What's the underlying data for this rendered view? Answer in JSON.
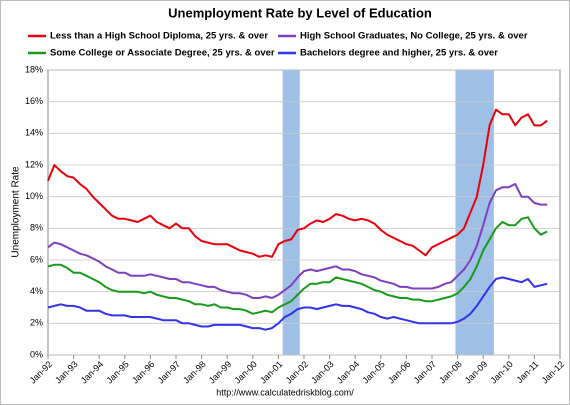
{
  "chart_data": {
    "type": "line",
    "title": "Unemployment Rate by Level of Education",
    "y_label": "Unemployment Rate",
    "footer": "http://www.calculatedriskblog.com/",
    "legend": "top",
    "grid": true,
    "ylim": [
      0,
      18
    ],
    "yticks": [
      {
        "value": 0,
        "label": "0%"
      },
      {
        "value": 2,
        "label": "2%"
      },
      {
        "value": 4,
        "label": "4%"
      },
      {
        "value": 6,
        "label": "6%"
      },
      {
        "value": 8,
        "label": "8%"
      },
      {
        "value": 10,
        "label": "10%"
      },
      {
        "value": 12,
        "label": "12%"
      },
      {
        "value": 14,
        "label": "14%"
      },
      {
        "value": 16,
        "label": "16%"
      },
      {
        "value": 18,
        "label": "18%"
      }
    ],
    "xlim": [
      "1992-01",
      "2012-01"
    ],
    "xticks": [
      {
        "value": "1992-01",
        "label": "Jan-92"
      },
      {
        "value": "1993-01",
        "label": "Jan-93"
      },
      {
        "value": "1994-01",
        "label": "Jan-94"
      },
      {
        "value": "1995-01",
        "label": "Jan-95"
      },
      {
        "value": "1996-01",
        "label": "Jan-96"
      },
      {
        "value": "1997-01",
        "label": "Jan-97"
      },
      {
        "value": "1998-01",
        "label": "Jan-98"
      },
      {
        "value": "1999-01",
        "label": "Jan-99"
      },
      {
        "value": "2000-01",
        "label": "Jan-00"
      },
      {
        "value": "2001-01",
        "label": "Jan-01"
      },
      {
        "value": "2002-01",
        "label": "Jan-02"
      },
      {
        "value": "2003-01",
        "label": "Jan-03"
      },
      {
        "value": "2004-01",
        "label": "Jan-04"
      },
      {
        "value": "2005-01",
        "label": "Jan-05"
      },
      {
        "value": "2006-01",
        "label": "Jan-06"
      },
      {
        "value": "2007-01",
        "label": "Jan-07"
      },
      {
        "value": "2008-01",
        "label": "Jan-08"
      },
      {
        "value": "2009-01",
        "label": "Jan-09"
      },
      {
        "value": "2010-01",
        "label": "Jan-10"
      },
      {
        "value": "2011-01",
        "label": "Jan-11"
      },
      {
        "value": "2012-01",
        "label": "Jan-12"
      }
    ],
    "recessions": [
      [
        "2001-03",
        "2001-11"
      ],
      [
        "2007-12",
        "2009-06"
      ]
    ],
    "recession_color": "#8db4e2",
    "x": [
      "1992-01",
      "1992-04",
      "1992-07",
      "1992-10",
      "1993-01",
      "1993-04",
      "1993-07",
      "1993-10",
      "1994-01",
      "1994-04",
      "1994-07",
      "1994-10",
      "1995-01",
      "1995-04",
      "1995-07",
      "1995-10",
      "1996-01",
      "1996-04",
      "1996-07",
      "1996-10",
      "1997-01",
      "1997-04",
      "1997-07",
      "1997-10",
      "1998-01",
      "1998-04",
      "1998-07",
      "1998-10",
      "1999-01",
      "1999-04",
      "1999-07",
      "1999-10",
      "2000-01",
      "2000-04",
      "2000-07",
      "2000-10",
      "2001-01",
      "2001-04",
      "2001-07",
      "2001-10",
      "2002-01",
      "2002-04",
      "2002-07",
      "2002-10",
      "2003-01",
      "2003-04",
      "2003-07",
      "2003-10",
      "2004-01",
      "2004-04",
      "2004-07",
      "2004-10",
      "2005-01",
      "2005-04",
      "2005-07",
      "2005-10",
      "2006-01",
      "2006-04",
      "2006-07",
      "2006-10",
      "2007-01",
      "2007-04",
      "2007-07",
      "2007-10",
      "2008-01",
      "2008-04",
      "2008-07",
      "2008-10",
      "2009-01",
      "2009-04",
      "2009-07",
      "2009-10",
      "2010-01",
      "2010-04",
      "2010-07",
      "2010-10",
      "2011-01",
      "2011-04",
      "2011-07"
    ],
    "series": [
      {
        "name": "Less than a High School Diploma, 25 yrs. & over",
        "color": "#e8000b",
        "values": [
          11.0,
          12.0,
          11.6,
          11.3,
          11.2,
          10.8,
          10.5,
          10.0,
          9.6,
          9.2,
          8.8,
          8.6,
          8.6,
          8.5,
          8.4,
          8.6,
          8.8,
          8.4,
          8.2,
          8.0,
          8.3,
          8.0,
          8.0,
          7.5,
          7.2,
          7.1,
          7.0,
          7.0,
          7.0,
          6.8,
          6.6,
          6.5,
          6.4,
          6.2,
          6.3,
          6.2,
          7.0,
          7.2,
          7.3,
          7.9,
          8.0,
          8.3,
          8.5,
          8.4,
          8.6,
          8.9,
          8.8,
          8.6,
          8.5,
          8.6,
          8.5,
          8.3,
          7.9,
          7.6,
          7.4,
          7.2,
          7.0,
          6.9,
          6.6,
          6.3,
          6.8,
          7.0,
          7.2,
          7.4,
          7.6,
          8.0,
          9.0,
          10.0,
          12.0,
          14.5,
          15.5,
          15.2,
          15.2,
          14.5,
          15.0,
          15.2,
          14.5,
          14.5,
          14.8
        ]
      },
      {
        "name": "High School Graduates, No College, 25 yrs. & over",
        "color": "#7f3fbf",
        "values": [
          6.8,
          7.1,
          7.0,
          6.8,
          6.6,
          6.4,
          6.3,
          6.1,
          5.9,
          5.6,
          5.4,
          5.2,
          5.2,
          5.0,
          5.0,
          5.0,
          5.1,
          5.0,
          4.9,
          4.8,
          4.8,
          4.6,
          4.6,
          4.5,
          4.4,
          4.3,
          4.3,
          4.1,
          4.0,
          3.9,
          3.9,
          3.8,
          3.6,
          3.6,
          3.7,
          3.6,
          3.8,
          4.1,
          4.4,
          4.9,
          5.3,
          5.4,
          5.3,
          5.4,
          5.5,
          5.6,
          5.4,
          5.4,
          5.3,
          5.1,
          5.0,
          4.9,
          4.7,
          4.6,
          4.5,
          4.3,
          4.3,
          4.2,
          4.2,
          4.2,
          4.2,
          4.3,
          4.5,
          4.6,
          5.0,
          5.4,
          6.0,
          6.9,
          8.2,
          9.6,
          10.4,
          10.6,
          10.6,
          10.8,
          10.0,
          10.0,
          9.6,
          9.5,
          9.5
        ]
      },
      {
        "name": "Some College or Associate Degree, 25 yrs. & over",
        "color": "#1a9a1a",
        "values": [
          5.6,
          5.7,
          5.7,
          5.5,
          5.2,
          5.2,
          5.0,
          4.8,
          4.6,
          4.3,
          4.1,
          4.0,
          4.0,
          4.0,
          4.0,
          3.9,
          4.0,
          3.8,
          3.7,
          3.6,
          3.6,
          3.5,
          3.4,
          3.2,
          3.2,
          3.1,
          3.2,
          3.0,
          3.0,
          2.9,
          2.9,
          2.8,
          2.6,
          2.7,
          2.8,
          2.7,
          3.0,
          3.2,
          3.4,
          3.8,
          4.2,
          4.5,
          4.5,
          4.6,
          4.6,
          4.9,
          4.8,
          4.7,
          4.6,
          4.5,
          4.3,
          4.1,
          4.0,
          3.8,
          3.7,
          3.6,
          3.6,
          3.5,
          3.5,
          3.4,
          3.4,
          3.5,
          3.6,
          3.7,
          3.9,
          4.3,
          4.8,
          5.6,
          6.6,
          7.3,
          8.0,
          8.4,
          8.2,
          8.2,
          8.6,
          8.7,
          8.0,
          7.6,
          7.8
        ]
      },
      {
        "name": "Bachelors degree and higher, 25 yrs. & over",
        "color": "#3333ee",
        "values": [
          3.0,
          3.1,
          3.2,
          3.1,
          3.1,
          3.0,
          2.8,
          2.8,
          2.8,
          2.6,
          2.5,
          2.5,
          2.5,
          2.4,
          2.4,
          2.4,
          2.4,
          2.3,
          2.2,
          2.2,
          2.2,
          2.0,
          2.0,
          1.9,
          1.8,
          1.8,
          1.9,
          1.9,
          1.9,
          1.9,
          1.9,
          1.8,
          1.7,
          1.7,
          1.6,
          1.7,
          2.0,
          2.4,
          2.6,
          2.9,
          3.0,
          3.0,
          2.9,
          3.0,
          3.1,
          3.2,
          3.1,
          3.1,
          3.0,
          2.9,
          2.7,
          2.6,
          2.4,
          2.3,
          2.4,
          2.3,
          2.2,
          2.1,
          2.0,
          2.0,
          2.0,
          2.0,
          2.0,
          2.0,
          2.1,
          2.3,
          2.6,
          3.1,
          3.7,
          4.3,
          4.8,
          4.9,
          4.8,
          4.7,
          4.6,
          4.8,
          4.3,
          4.4,
          4.5
        ]
      }
    ]
  }
}
